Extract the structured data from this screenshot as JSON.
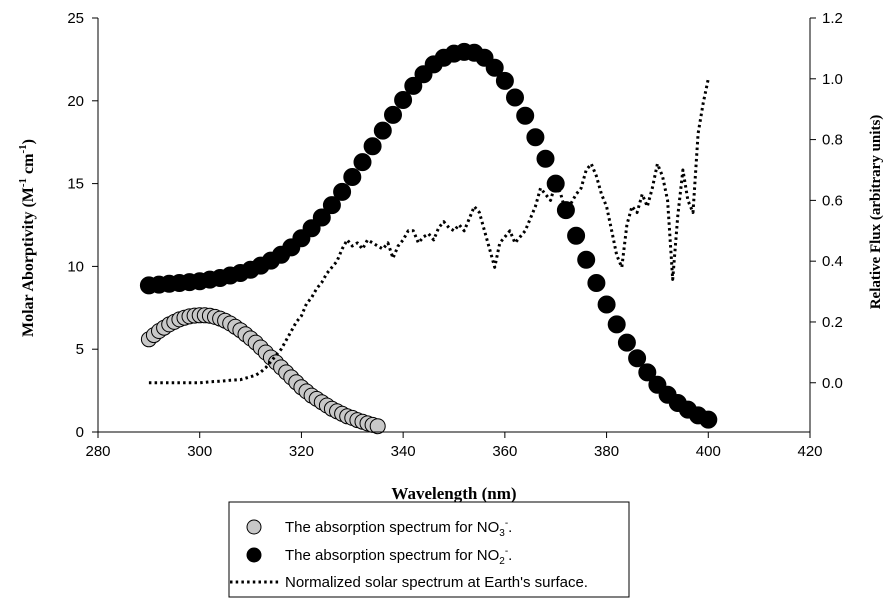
{
  "chart_data": {
    "type": "scatter",
    "title": "",
    "x_axis": {
      "label": "Wavelength (nm)",
      "min": 280,
      "max": 420,
      "ticks": [
        280,
        300,
        320,
        340,
        360,
        380,
        400,
        420
      ],
      "tick_labels": [
        "280",
        "300",
        "320",
        "340",
        "360",
        "380",
        "400",
        "420"
      ]
    },
    "y_left": {
      "label_main": "Molar Aborptivity (M",
      "label_sup1": "-1",
      "label_mid": " cm",
      "label_sup2": "-1",
      "label_end": ")",
      "min": 0,
      "max": 25,
      "ticks": [
        0,
        5,
        10,
        15,
        20,
        25
      ],
      "tick_labels": [
        "0",
        "5",
        "10",
        "15",
        "20",
        "25"
      ]
    },
    "y_right": {
      "label": "Relative Flux (arbitrary units)",
      "min": -0.162,
      "max": 1.2,
      "ticks": [
        0.0,
        0.2,
        0.4,
        0.6,
        0.8,
        1.0,
        1.2
      ],
      "tick_labels": [
        "0.0",
        "0.2",
        "0.4",
        "0.6",
        "0.8",
        "1.0",
        "1.2"
      ]
    },
    "series": [
      {
        "name_main": "The absorption spectrum for NO",
        "name_sub": "3",
        "name_sup": "-",
        "name_end": ".",
        "axis": "left",
        "marker": "circle",
        "fill": "#c8c8c8",
        "x": [
          290,
          291,
          292,
          293,
          294,
          295,
          296,
          297,
          298,
          299,
          300,
          301,
          302,
          303,
          304,
          305,
          306,
          307,
          308,
          309,
          310,
          311,
          312,
          313,
          314,
          315,
          316,
          317,
          318,
          319,
          320,
          321,
          322,
          323,
          324,
          325,
          326,
          327,
          328,
          329,
          330,
          331,
          332,
          333,
          334,
          335
        ],
        "y": [
          5.6,
          5.85,
          6.1,
          6.3,
          6.5,
          6.65,
          6.8,
          6.9,
          6.98,
          7.03,
          7.05,
          7.05,
          7.02,
          6.95,
          6.85,
          6.72,
          6.55,
          6.35,
          6.15,
          5.9,
          5.65,
          5.4,
          5.1,
          4.8,
          4.5,
          4.2,
          3.9,
          3.6,
          3.3,
          3.0,
          2.7,
          2.45,
          2.2,
          2.0,
          1.8,
          1.6,
          1.4,
          1.25,
          1.1,
          0.95,
          0.85,
          0.72,
          0.62,
          0.52,
          0.43,
          0.35
        ]
      },
      {
        "name_main": "The absorption spectrum for NO",
        "name_sub": "2",
        "name_sup": "-",
        "name_end": ".",
        "axis": "left",
        "marker": "circle",
        "fill": "#000000",
        "x": [
          290,
          292,
          294,
          296,
          298,
          300,
          302,
          304,
          306,
          308,
          310,
          312,
          314,
          316,
          318,
          320,
          322,
          324,
          326,
          328,
          330,
          332,
          334,
          336,
          338,
          340,
          342,
          344,
          346,
          348,
          350,
          352,
          354,
          356,
          358,
          360,
          362,
          364,
          366,
          368,
          370,
          372,
          374,
          376,
          378,
          380,
          382,
          384,
          386,
          388,
          390,
          392,
          394,
          396,
          398,
          400
        ],
        "y": [
          8.85,
          8.9,
          8.95,
          9.0,
          9.05,
          9.1,
          9.2,
          9.3,
          9.45,
          9.6,
          9.8,
          10.05,
          10.35,
          10.7,
          11.15,
          11.7,
          12.3,
          12.95,
          13.7,
          14.5,
          15.4,
          16.3,
          17.25,
          18.2,
          19.15,
          20.05,
          20.9,
          21.6,
          22.2,
          22.6,
          22.85,
          22.95,
          22.9,
          22.6,
          22.0,
          21.2,
          20.2,
          19.1,
          17.8,
          16.5,
          15.0,
          13.4,
          11.85,
          10.4,
          9.0,
          7.7,
          6.5,
          5.4,
          4.45,
          3.6,
          2.85,
          2.25,
          1.75,
          1.35,
          1.0,
          0.75
        ]
      },
      {
        "name": "Normalized solar spectrum at Earth's surface.",
        "axis": "right",
        "marker": "dotted-line",
        "fill": "#000000",
        "x": [
          290,
          292,
          294,
          296,
          298,
          300,
          302,
          304,
          306,
          308,
          310,
          311,
          312,
          313,
          314,
          315,
          316,
          317,
          318,
          319,
          320,
          321,
          322,
          323,
          324,
          325,
          326,
          327,
          328,
          329,
          330,
          331,
          332,
          333,
          334,
          335,
          336,
          337,
          338,
          339,
          340,
          341,
          342,
          343,
          344,
          345,
          346,
          347,
          348,
          349,
          350,
          351,
          352,
          353,
          354,
          355,
          356,
          357,
          358,
          359,
          360,
          361,
          362,
          363,
          364,
          365,
          366,
          367,
          368,
          369,
          370,
          371,
          372,
          373,
          374,
          375,
          376,
          377,
          378,
          379,
          380,
          381,
          382,
          383,
          384,
          385,
          386,
          387,
          388,
          389,
          390,
          391,
          392,
          393,
          394,
          395,
          396,
          397,
          398,
          399,
          400
        ],
        "y": [
          0.0,
          0.0,
          0.0,
          0.0,
          0.0,
          0.0,
          0.003,
          0.005,
          0.008,
          0.01,
          0.02,
          0.025,
          0.035,
          0.05,
          0.07,
          0.09,
          0.11,
          0.14,
          0.17,
          0.2,
          0.22,
          0.26,
          0.28,
          0.31,
          0.33,
          0.36,
          0.38,
          0.4,
          0.44,
          0.47,
          0.45,
          0.46,
          0.44,
          0.47,
          0.46,
          0.45,
          0.44,
          0.46,
          0.41,
          0.45,
          0.47,
          0.5,
          0.5,
          0.46,
          0.48,
          0.49,
          0.47,
          0.51,
          0.53,
          0.51,
          0.5,
          0.52,
          0.5,
          0.54,
          0.58,
          0.56,
          0.5,
          0.44,
          0.38,
          0.46,
          0.48,
          0.5,
          0.46,
          0.48,
          0.5,
          0.54,
          0.58,
          0.64,
          0.62,
          0.6,
          0.66,
          0.62,
          0.56,
          0.59,
          0.62,
          0.64,
          0.7,
          0.72,
          0.68,
          0.62,
          0.58,
          0.5,
          0.42,
          0.38,
          0.52,
          0.58,
          0.56,
          0.62,
          0.58,
          0.64,
          0.72,
          0.68,
          0.6,
          0.34,
          0.55,
          0.7,
          0.6,
          0.56,
          0.82,
          0.92,
          1.0
        ]
      }
    ],
    "legend": {
      "position": "bottom-center",
      "entries": [
        {
          "label_main": "The absorption spectrum for NO",
          "label_sub": "3",
          "label_sup": "-",
          "label_end": "."
        },
        {
          "label_main": "The absorption spectrum for NO",
          "label_sub": "2",
          "label_sup": "-",
          "label_end": "."
        },
        {
          "label_main": "Normalized solar spectrum at Earth's surface.",
          "label_sub": "",
          "label_sup": "",
          "label_end": ""
        }
      ]
    },
    "grid": false
  }
}
